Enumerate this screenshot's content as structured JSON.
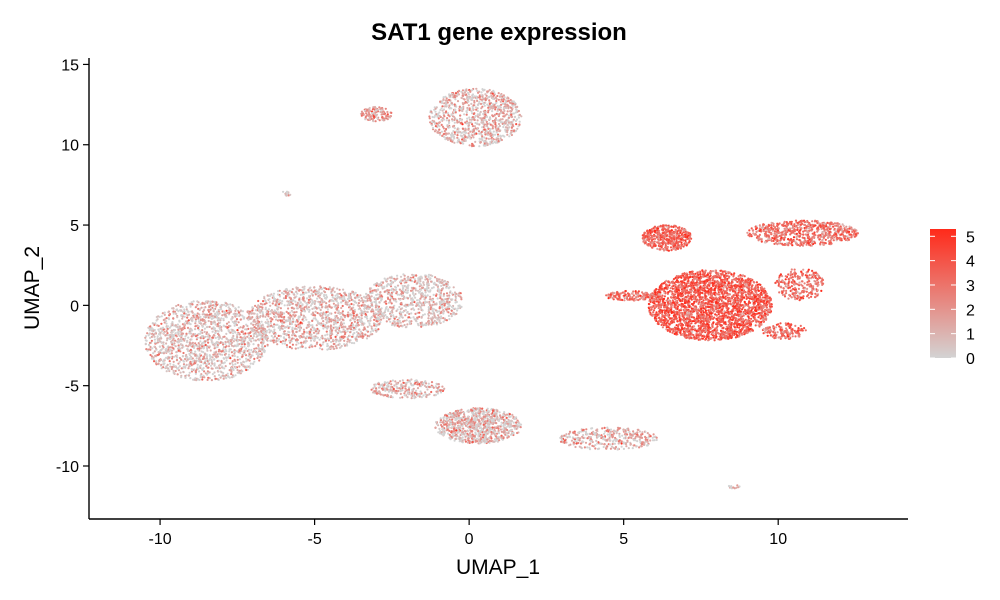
{
  "chart_data": {
    "type": "scatter",
    "title": "SAT1 gene expression",
    "xlabel": "UMAP_1",
    "ylabel": "UMAP_2",
    "xlim": [
      -12.3,
      14.2
    ],
    "ylim": [
      -13.3,
      15.4
    ],
    "x_ticks": [
      -10,
      -5,
      0,
      5,
      10
    ],
    "y_ticks": [
      -10,
      -5,
      0,
      5,
      10,
      15
    ],
    "x_tick_labels": [
      "-10",
      "-5",
      "0",
      "5",
      "10"
    ],
    "y_tick_labels": [
      "-10",
      "-5",
      "0",
      "5",
      "10",
      "15"
    ],
    "grid": false,
    "color_scale": {
      "low_color": "#d3d3d3",
      "high_color": "#ff2a1a",
      "min": 0,
      "max": 5.3,
      "ticks": [
        0,
        1,
        2,
        3,
        4,
        5
      ],
      "tick_labels": [
        "0",
        "1",
        "2",
        "3",
        "4",
        "5"
      ],
      "legend_position": "right"
    },
    "clusters": [
      {
        "region": "upper-center",
        "cx": 0.2,
        "cy": 11.7,
        "rx": 1.5,
        "ry": 1.8,
        "n": 900,
        "expr_mean": 1.4
      },
      {
        "region": "upper-center-small",
        "cx": -3.0,
        "cy": 11.9,
        "rx": 0.5,
        "ry": 0.45,
        "n": 120,
        "expr_mean": 2.0
      },
      {
        "region": "tiny-top",
        "cx": -5.9,
        "cy": 7.0,
        "rx": 0.15,
        "ry": 0.2,
        "n": 12,
        "expr_mean": 0.8
      },
      {
        "region": "left-main",
        "cx": -8.5,
        "cy": -2.2,
        "rx": 2.0,
        "ry": 2.5,
        "n": 1500,
        "expr_mean": 1.1
      },
      {
        "region": "left-middle",
        "cx": -5.0,
        "cy": -0.8,
        "rx": 2.2,
        "ry": 2.0,
        "n": 1300,
        "expr_mean": 1.3
      },
      {
        "region": "left-right",
        "cx": -1.8,
        "cy": 0.3,
        "rx": 1.6,
        "ry": 1.7,
        "n": 800,
        "expr_mean": 1.0
      },
      {
        "region": "lower-center",
        "cx": 0.3,
        "cy": -7.5,
        "rx": 1.4,
        "ry": 1.1,
        "n": 900,
        "expr_mean": 1.5
      },
      {
        "region": "lower-center-tail",
        "cx": -2.0,
        "cy": -5.2,
        "rx": 1.2,
        "ry": 0.6,
        "n": 250,
        "expr_mean": 1.3
      },
      {
        "region": "lower-right-tail",
        "cx": 4.5,
        "cy": -8.3,
        "rx": 1.6,
        "ry": 0.7,
        "n": 350,
        "expr_mean": 1.6
      },
      {
        "region": "right-main",
        "cx": 7.8,
        "cy": 0.0,
        "rx": 2.0,
        "ry": 2.2,
        "n": 2600,
        "expr_mean": 3.7
      },
      {
        "region": "right-upper-left",
        "cx": 6.4,
        "cy": 4.2,
        "rx": 0.8,
        "ry": 0.8,
        "n": 450,
        "expr_mean": 3.5
      },
      {
        "region": "right-upper-right",
        "cx": 10.8,
        "cy": 4.5,
        "rx": 1.8,
        "ry": 0.8,
        "n": 650,
        "expr_mean": 3.0
      },
      {
        "region": "right-arm",
        "cx": 5.2,
        "cy": 0.6,
        "rx": 0.8,
        "ry": 0.3,
        "n": 150,
        "expr_mean": 3.2
      },
      {
        "region": "right-lower",
        "cx": 10.2,
        "cy": -1.6,
        "rx": 0.7,
        "ry": 0.5,
        "n": 150,
        "expr_mean": 3.2
      },
      {
        "region": "right-bridge",
        "cx": 10.7,
        "cy": 1.3,
        "rx": 0.8,
        "ry": 1.0,
        "n": 250,
        "expr_mean": 3.0
      },
      {
        "region": "tiny-bottom",
        "cx": 8.6,
        "cy": -11.3,
        "rx": 0.25,
        "ry": 0.12,
        "n": 12,
        "expr_mean": 1.0
      }
    ]
  }
}
